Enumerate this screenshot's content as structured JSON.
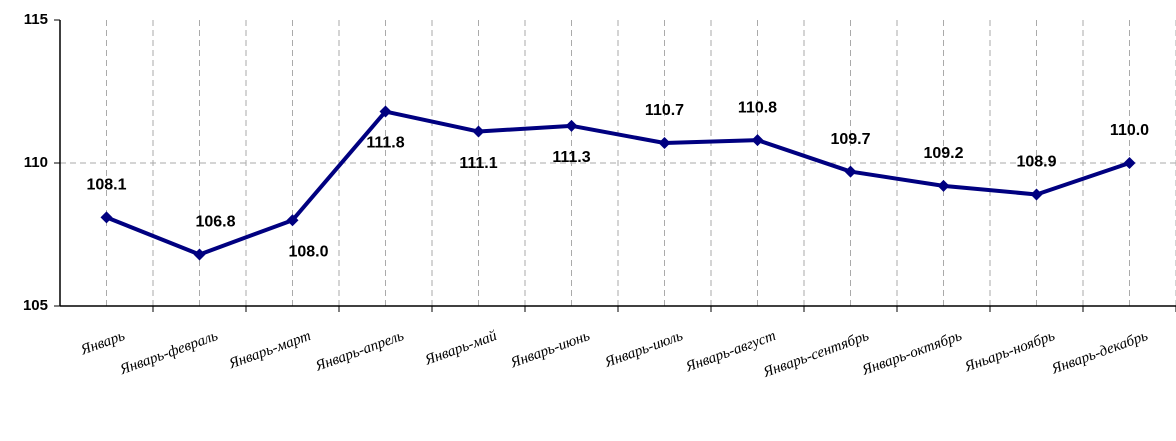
{
  "chart_data": {
    "type": "line",
    "categories": [
      "Январь",
      "Январь-февраль",
      "Январь-март",
      "Январь-апрель",
      "Январь-май",
      "Январь-июнь",
      "Январь-июль",
      "Январь-август",
      "Январь-сентябрь",
      "Январь-октябрь",
      "Яньарь-ноябрь",
      "Январь-декабрь"
    ],
    "series": [
      {
        "color": "#000080",
        "values": [
          108.1,
          106.8,
          108.0,
          111.8,
          111.1,
          111.3,
          110.7,
          110.8,
          109.7,
          109.2,
          108.9,
          110.0
        ],
        "value_labels": [
          "108.1",
          "106.8",
          "108.0",
          "111.8",
          "111.1",
          "111.3",
          "110.7",
          "110.8",
          "109.7",
          "109.2",
          "108.9",
          "110.0"
        ]
      }
    ],
    "ylim": [
      105,
      115
    ],
    "yticks": [
      105,
      110,
      115
    ],
    "grid": true
  }
}
